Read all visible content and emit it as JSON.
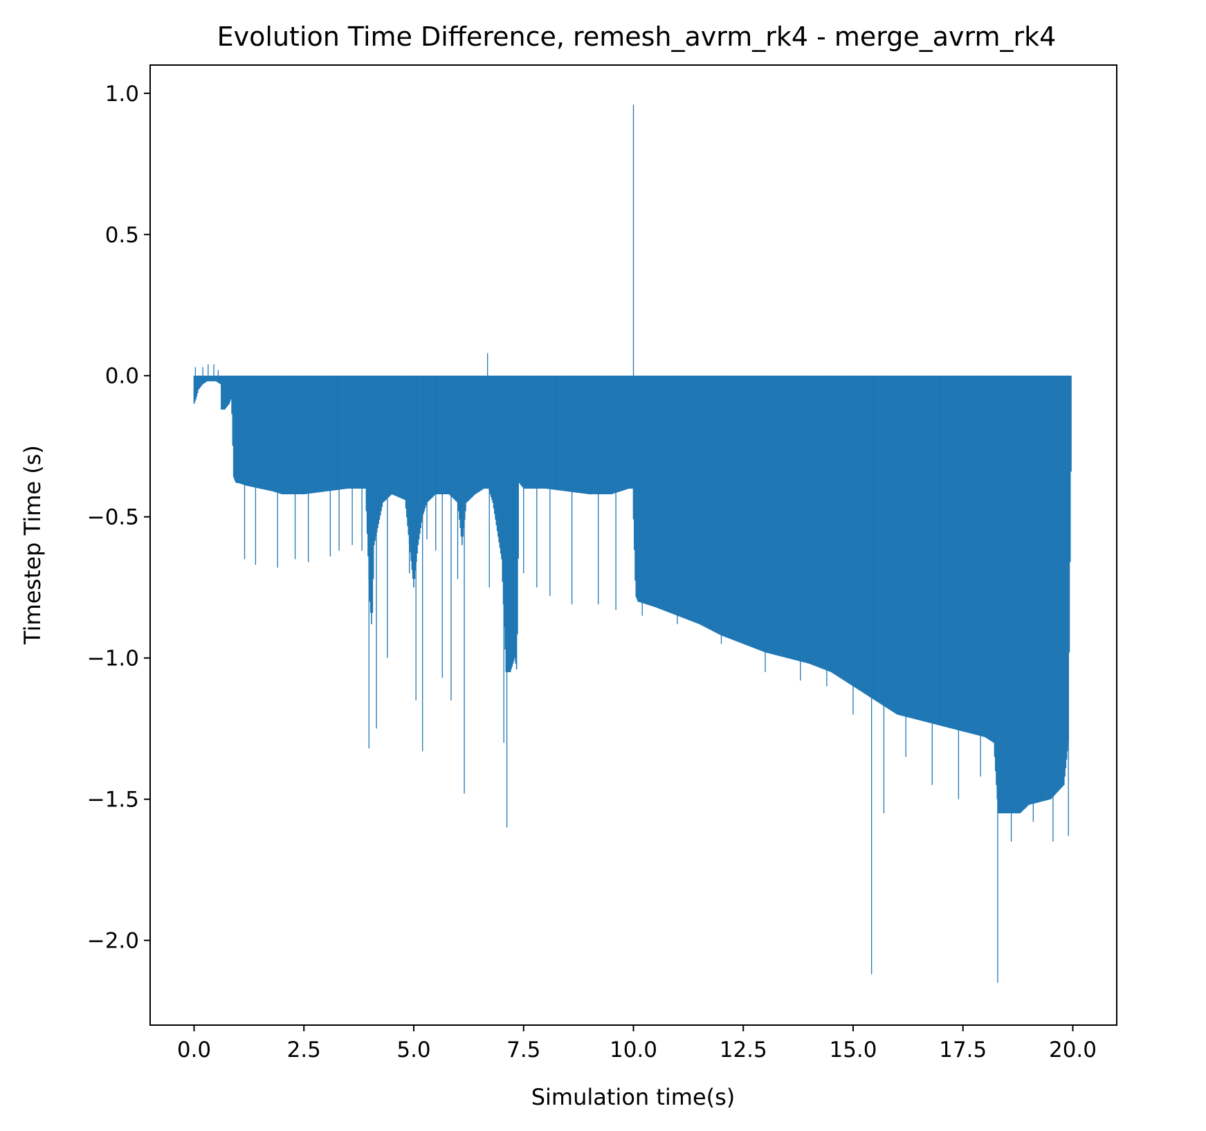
{
  "chart_data": {
    "type": "bar",
    "title": "Evolution Time Difference, remesh_avrm_rk4 - merge_avrm_rk4",
    "xlabel": "Simulation time(s)",
    "ylabel": "Timestep Time (s)",
    "xlim": [
      -1.0,
      21.0
    ],
    "ylim": [
      -2.3,
      1.1
    ],
    "xticks": [
      0.0,
      2.5,
      5.0,
      7.5,
      10.0,
      12.5,
      15.0,
      17.5,
      20.0
    ],
    "xtick_labels": [
      "0.0",
      "2.5",
      "5.0",
      "7.5",
      "10.0",
      "12.5",
      "15.0",
      "17.5",
      "20.0"
    ],
    "yticks": [
      1.0,
      0.5,
      0.0,
      -0.5,
      -1.0,
      -1.5,
      -2.0
    ],
    "ytick_labels": [
      "1.0",
      "0.5",
      "0.0",
      "−0.5",
      "−1.0",
      "−1.5",
      "−2.0"
    ],
    "grid": false,
    "legend": false,
    "color": "#1f77b4",
    "series": [
      {
        "envelope": {
          "x": [
            0.0,
            0.05,
            0.1,
            0.2,
            0.3,
            0.4,
            0.5,
            0.6,
            0.62,
            0.7,
            0.8,
            0.85,
            0.9,
            0.95,
            1.0,
            1.2,
            1.5,
            1.8,
            2.0,
            2.5,
            3.0,
            3.5,
            3.8,
            3.9,
            4.0,
            4.05,
            4.1,
            4.3,
            4.5,
            4.8,
            5.0,
            5.1,
            5.2,
            5.3,
            5.5,
            5.8,
            6.0,
            6.1,
            6.2,
            6.4,
            6.6,
            6.7,
            6.8,
            6.9,
            7.0,
            7.1,
            7.2,
            7.3,
            7.35,
            7.4,
            7.5,
            8.0,
            8.5,
            9.0,
            9.5,
            9.9,
            9.98,
            10.05,
            10.1,
            10.5,
            11.0,
            11.5,
            12.0,
            12.5,
            13.0,
            13.5,
            14.0,
            14.5,
            14.8,
            15.0,
            15.2,
            15.5,
            15.8,
            16.0,
            16.5,
            17.0,
            17.5,
            18.0,
            18.2,
            18.3,
            18.5,
            18.8,
            19.0,
            19.5,
            19.8,
            19.9,
            19.97
          ],
          "y": [
            -0.1,
            -0.08,
            -0.05,
            -0.03,
            -0.02,
            -0.02,
            -0.02,
            -0.03,
            -0.12,
            -0.12,
            -0.1,
            -0.08,
            -0.36,
            -0.38,
            -0.38,
            -0.39,
            -0.4,
            -0.41,
            -0.42,
            -0.42,
            -0.41,
            -0.4,
            -0.4,
            -0.4,
            -0.8,
            -0.9,
            -0.6,
            -0.45,
            -0.42,
            -0.44,
            -0.75,
            -0.6,
            -0.5,
            -0.45,
            -0.42,
            -0.42,
            -0.45,
            -0.6,
            -0.45,
            -0.42,
            -0.4,
            -0.4,
            -0.45,
            -0.55,
            -0.65,
            -1.05,
            -1.05,
            -1.0,
            -1.05,
            -0.38,
            -0.4,
            -0.4,
            -0.41,
            -0.42,
            -0.42,
            -0.4,
            -0.4,
            -0.78,
            -0.8,
            -0.82,
            -0.85,
            -0.88,
            -0.92,
            -0.95,
            -0.98,
            -1.0,
            -1.02,
            -1.05,
            -1.08,
            -1.1,
            -1.12,
            -1.15,
            -1.18,
            -1.2,
            -1.22,
            -1.24,
            -1.26,
            -1.28,
            -1.3,
            -1.55,
            -1.55,
            -1.55,
            -1.52,
            -1.5,
            -1.45,
            -1.3,
            -0.18
          ]
        },
        "spikes": {
          "x": [
            0.03,
            0.2,
            0.32,
            0.45,
            0.55,
            1.15,
            1.4,
            1.9,
            2.3,
            2.6,
            3.1,
            3.3,
            3.6,
            3.75,
            3.82,
            3.93,
            3.98,
            4.15,
            4.4,
            4.6,
            4.9,
            5.05,
            5.2,
            5.3,
            5.5,
            5.65,
            5.85,
            6.0,
            6.15,
            6.3,
            6.5,
            6.68,
            6.72,
            7.05,
            7.12,
            7.5,
            7.8,
            8.1,
            8.6,
            9.2,
            9.6,
            9.95,
            10.0,
            10.2,
            11.0,
            12.0,
            13.0,
            13.8,
            14.4,
            14.5,
            15.0,
            15.42,
            15.7,
            16.2,
            16.8,
            17.4,
            17.9,
            18.29,
            18.6,
            19.1,
            19.55,
            19.9
          ],
          "y": [
            0.03,
            0.03,
            0.04,
            0.04,
            0.02,
            -0.65,
            -0.67,
            -0.68,
            -0.65,
            -0.66,
            -0.64,
            -0.62,
            -0.6,
            -0.16,
            -0.62,
            -0.05,
            -1.32,
            -1.25,
            -1.0,
            -0.2,
            -0.7,
            -1.15,
            -1.33,
            -0.58,
            -0.62,
            -1.07,
            -1.15,
            -0.72,
            -1.48,
            -0.23,
            -0.28,
            0.08,
            -0.75,
            -1.3,
            -1.6,
            -0.7,
            -0.75,
            -0.78,
            -0.81,
            -0.81,
            -0.83,
            -0.3,
            0.96,
            -0.85,
            -0.88,
            -0.95,
            -1.05,
            -1.08,
            -1.1,
            -0.58,
            -1.2,
            -2.12,
            -1.55,
            -1.35,
            -1.45,
            -1.5,
            -1.42,
            -2.15,
            -1.65,
            -1.58,
            -1.65,
            -1.63
          ]
        }
      }
    ]
  }
}
